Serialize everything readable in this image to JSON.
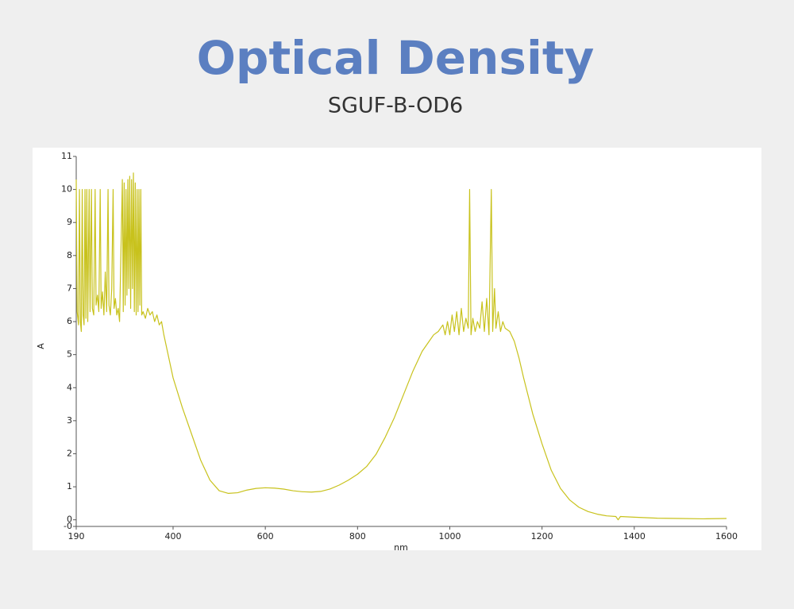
{
  "chart_data": {
    "type": "line",
    "title": "Optical Density",
    "subtitle": "SGUF-B-OD6",
    "x_label": "nm",
    "y_label": "A",
    "color": "#c8c21c",
    "xlim": [
      190,
      1600
    ],
    "xticks": [
      190,
      400,
      600,
      800,
      1000,
      1200,
      1400,
      1600
    ],
    "ylim": [
      -0.2,
      11
    ],
    "yticks": [
      {
        "value": -0.2,
        "label": "-0"
      },
      0,
      1,
      2,
      3,
      4,
      5,
      6,
      7,
      8,
      9,
      10,
      11
    ],
    "x": [
      190,
      192,
      195,
      197,
      199,
      201,
      203,
      205,
      207,
      209,
      211,
      213,
      215,
      218,
      220,
      223,
      225,
      228,
      231,
      233,
      236,
      239,
      242,
      244,
      247,
      250,
      253,
      256,
      259,
      261,
      264,
      267,
      270,
      272,
      275,
      278,
      281,
      284,
      290,
      292,
      294,
      296,
      298,
      300,
      302,
      304,
      306,
      308,
      310,
      312,
      314,
      316,
      318,
      320,
      322,
      324,
      326,
      328,
      330,
      332,
      335,
      340,
      345,
      350,
      355,
      360,
      365,
      370,
      375,
      380,
      400,
      420,
      440,
      460,
      480,
      500,
      520,
      540,
      560,
      580,
      600,
      620,
      640,
      660,
      680,
      700,
      720,
      740,
      760,
      780,
      800,
      820,
      840,
      860,
      880,
      900,
      920,
      940,
      955,
      965,
      975,
      985,
      990,
      995,
      1000,
      1005,
      1010,
      1015,
      1020,
      1025,
      1030,
      1035,
      1040,
      1043,
      1046,
      1050,
      1055,
      1060,
      1065,
      1070,
      1075,
      1080,
      1085,
      1090,
      1093,
      1097,
      1100,
      1105,
      1110,
      1115,
      1120,
      1130,
      1140,
      1150,
      1160,
      1180,
      1200,
      1220,
      1240,
      1260,
      1280,
      1300,
      1320,
      1340,
      1360,
      1365,
      1370,
      1400,
      1450,
      1500,
      1550,
      1600
    ],
    "values": [
      10.3,
      6.3,
      5.9,
      10,
      6.0,
      5.7,
      10,
      6.2,
      5.9,
      10,
      6.1,
      10,
      6.0,
      10,
      6.3,
      10,
      6.4,
      6.2,
      10,
      6.5,
      6.8,
      6.3,
      10,
      6.4,
      6.9,
      6.2,
      7.5,
      6.3,
      10,
      6.5,
      6.2,
      7.0,
      10,
      6.4,
      6.7,
      6.2,
      6.4,
      6.0,
      10.3,
      6.3,
      10.2,
      6.5,
      10,
      6.8,
      10.3,
      7.0,
      10.4,
      6.4,
      10.3,
      7.0,
      10.5,
      6.3,
      10.2,
      6.2,
      10,
      6.3,
      10,
      6.5,
      10,
      6.2,
      6.3,
      6.1,
      6.4,
      6.2,
      6.3,
      6.0,
      6.2,
      5.9,
      6.0,
      5.6,
      4.3,
      3.4,
      2.6,
      1.8,
      1.2,
      0.88,
      0.8,
      0.82,
      0.9,
      0.95,
      0.97,
      0.96,
      0.93,
      0.88,
      0.85,
      0.84,
      0.86,
      0.93,
      1.05,
      1.2,
      1.38,
      1.62,
      1.98,
      2.5,
      3.1,
      3.8,
      4.5,
      5.1,
      5.4,
      5.6,
      5.7,
      5.9,
      5.6,
      6.0,
      5.6,
      6.2,
      5.7,
      6.3,
      5.6,
      6.4,
      5.7,
      6.1,
      5.8,
      10,
      5.6,
      6.1,
      5.7,
      6.0,
      5.8,
      6.6,
      5.7,
      6.7,
      5.6,
      10,
      5.7,
      7.0,
      5.8,
      6.3,
      5.7,
      6.0,
      5.8,
      5.7,
      5.4,
      4.9,
      4.3,
      3.2,
      2.3,
      1.5,
      0.95,
      0.6,
      0.38,
      0.25,
      0.17,
      0.12,
      0.1,
      0.0,
      0.1,
      0.08,
      0.05,
      0.04,
      0.03,
      0.04
    ]
  }
}
